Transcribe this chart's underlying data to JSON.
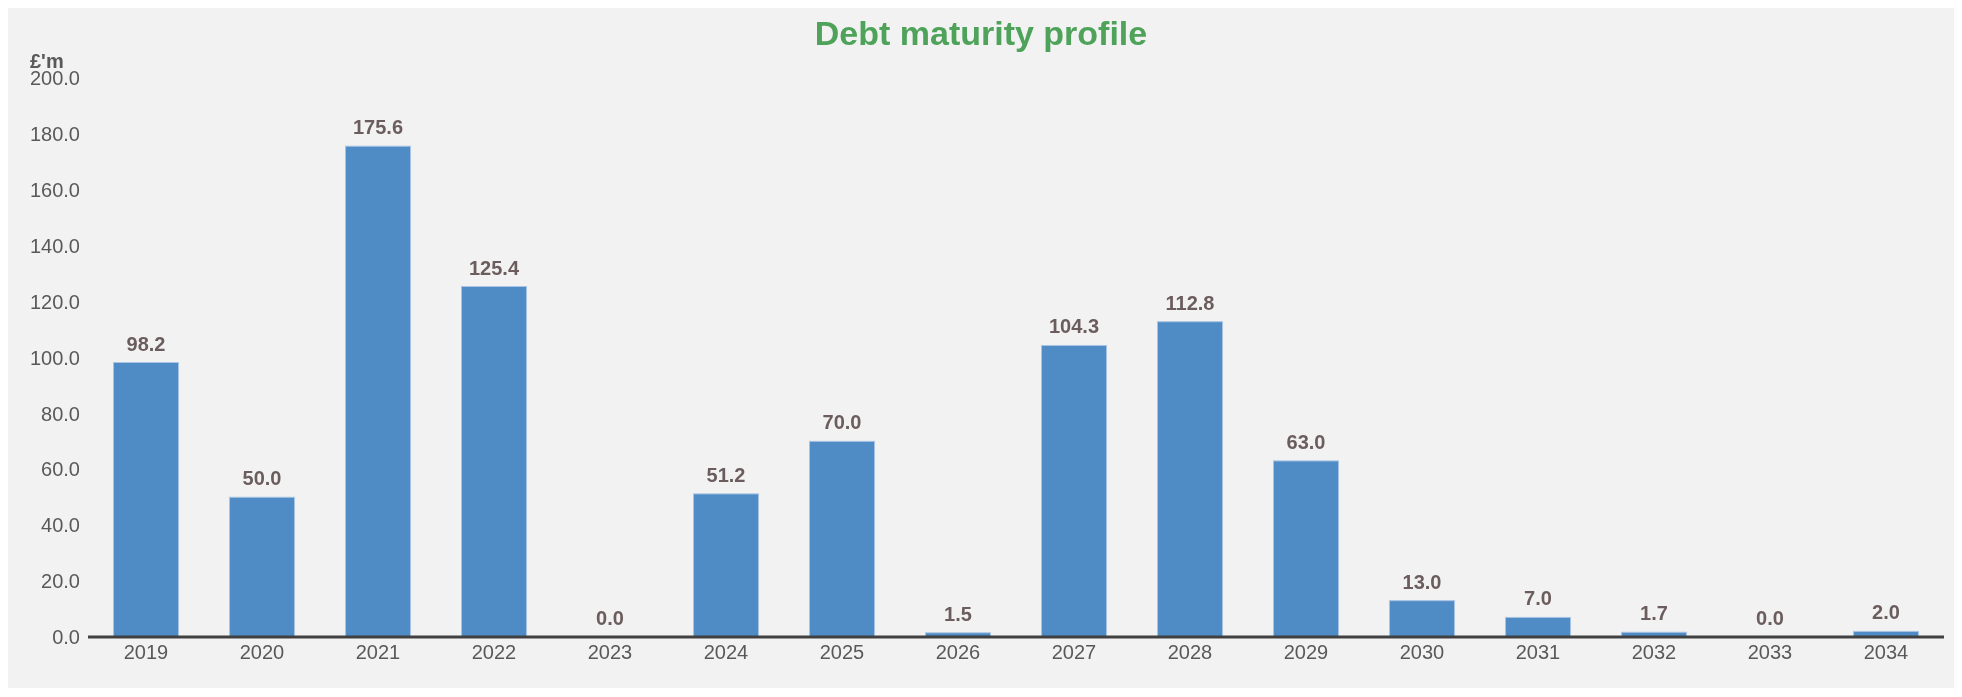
{
  "chart_data": {
    "type": "bar",
    "title": "Debt maturity profile",
    "ylabel": "£'m",
    "categories": [
      "2019",
      "2020",
      "2021",
      "2022",
      "2023",
      "2024",
      "2025",
      "2026",
      "2027",
      "2028",
      "2029",
      "2030",
      "2031",
      "2032",
      "2033",
      "2034"
    ],
    "values": [
      98.2,
      50.0,
      175.6,
      125.4,
      0.0,
      51.2,
      70.0,
      1.5,
      104.3,
      112.8,
      63.0,
      13.0,
      7.0,
      1.7,
      0.0,
      2.0
    ],
    "value_labels": [
      "98.2",
      "50.0",
      "175.6",
      "125.4",
      "0.0",
      "51.2",
      "70.0",
      "1.5",
      "104.3",
      "112.8",
      "63.0",
      "13.0",
      "7.0",
      "1.7",
      "0.0",
      "2.0"
    ],
    "color": "#4f8bc4",
    "ylim": [
      0,
      200
    ],
    "yticks": [
      {
        "value": 0,
        "label": "0.0"
      },
      {
        "value": 20,
        "label": "20.0"
      },
      {
        "value": 40,
        "label": "40.0"
      },
      {
        "value": 60,
        "label": "60.0"
      },
      {
        "value": 80,
        "label": "80.0"
      },
      {
        "value": 100,
        "label": "100.0"
      },
      {
        "value": 120,
        "label": "120.0"
      },
      {
        "value": 140,
        "label": "140.0"
      },
      {
        "value": 160,
        "label": "160.0"
      },
      {
        "value": 180,
        "label": "180.0"
      },
      {
        "value": 200,
        "label": "200.0"
      }
    ],
    "grid": false,
    "legend": false
  }
}
